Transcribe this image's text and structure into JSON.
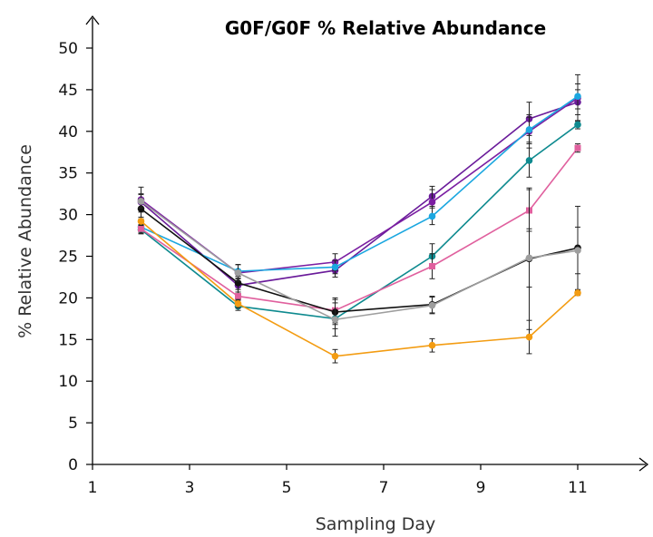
{
  "chart_data": {
    "type": "line",
    "title": "G0F/G0F % Relative Abundance",
    "xlabel": "Sampling Day",
    "ylabel": "% Relative Abundance",
    "xlim": [
      1,
      12.3
    ],
    "ylim": [
      0,
      52
    ],
    "xticks": [
      1,
      3,
      5,
      7,
      9,
      11
    ],
    "yticks": [
      0,
      5,
      10,
      15,
      20,
      25,
      30,
      35,
      40,
      45,
      50
    ],
    "x": [
      2,
      4,
      6,
      8,
      10,
      11
    ],
    "grid": false,
    "series": [
      {
        "color": "#6a1b9a",
        "marker": "circle",
        "values": [
          31.5,
          21.5,
          23.3,
          32.2,
          41.5,
          43.5
        ],
        "errors": [
          1.0,
          0.8,
          0.8,
          1.2,
          2.0,
          1.5
        ]
      },
      {
        "color": "#7b1fa2",
        "marker": "circle",
        "values": [
          31.8,
          23.0,
          24.3,
          31.5,
          40.0,
          44.0
        ],
        "errors": [
          1.5,
          1.0,
          1.0,
          1.5,
          2.0,
          2.8
        ]
      },
      {
        "color": "#1ba7e0",
        "marker": "circle",
        "values": [
          28.5,
          23.2,
          23.7,
          29.8,
          40.2,
          44.2
        ],
        "errors": [
          0.8,
          0.8,
          0.8,
          1.0,
          1.5,
          1.5
        ]
      },
      {
        "color": "#0e8a8f",
        "marker": "circle",
        "values": [
          28.2,
          19.0,
          17.5,
          25.0,
          36.5,
          40.8
        ],
        "errors": [
          0.5,
          0.5,
          1.2,
          1.5,
          2.0,
          0.5
        ]
      },
      {
        "color": "#e0609e",
        "marker": "square",
        "values": [
          28.3,
          20.2,
          18.5,
          23.8,
          30.5,
          38.0
        ],
        "errors": [
          0.5,
          0.5,
          1.5,
          1.5,
          2.5,
          0.5
        ]
      },
      {
        "color": "#111111",
        "marker": "circle",
        "values": [
          30.7,
          21.8,
          18.3,
          19.2,
          24.7,
          26.0
        ],
        "errors": [
          1.2,
          0.8,
          1.5,
          1.0,
          8.5,
          5.0
        ]
      },
      {
        "color": "#9e9e9e",
        "marker": "circle",
        "values": [
          31.6,
          23.0,
          17.4,
          19.1,
          24.8,
          25.7
        ],
        "errors": [
          0.8,
          1.0,
          2.0,
          1.0,
          3.5,
          2.8
        ]
      },
      {
        "color": "#f39c12",
        "marker": "circle",
        "values": [
          29.2,
          19.3,
          13.0,
          14.3,
          15.3,
          20.6
        ],
        "errors": [
          0.5,
          0.5,
          0.8,
          0.8,
          2.0,
          0.3
        ]
      }
    ]
  }
}
